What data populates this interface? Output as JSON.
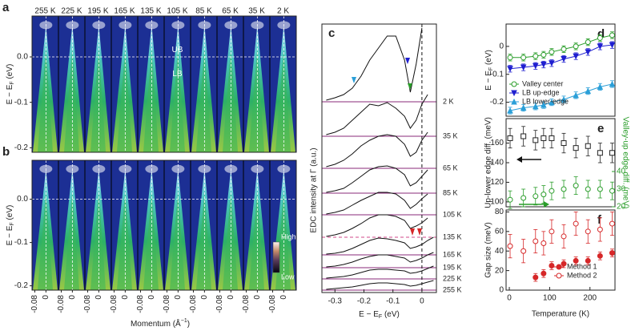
{
  "chart_data": [
    {
      "type": "image",
      "letter": "a",
      "categories": [
        "255 K",
        "225 K",
        "195 K",
        "165 K",
        "135 K",
        "105 K",
        "85 K",
        "65 K",
        "35 K",
        "2 K"
      ],
      "ylabel": [
        "E − E",
        "F",
        " (eV)"
      ],
      "ylim": [
        -0.21,
        0.09
      ],
      "yticks": [
        {
          "value": 0,
          "label": "0.0"
        },
        -0.1,
        -0.2
      ],
      "xlim": [
        -0.1,
        0.09
      ],
      "annotations": [
        "UB",
        "LB"
      ]
    },
    {
      "type": "image",
      "letter": "b",
      "ylabel": [
        "E − E",
        "F",
        " (eV)"
      ],
      "ylim": [
        -0.21,
        0.09
      ],
      "yticks": [
        {
          "value": 0,
          "label": "0.0"
        },
        -0.1,
        -0.2
      ],
      "xlim": [
        -0.1,
        0.09
      ],
      "xticks": [
        -0.08,
        0
      ],
      "xlabel": [
        "Momentum (Å",
        "−1",
        ")"
      ],
      "colorbar": [
        "High",
        "Low"
      ]
    },
    {
      "type": "line",
      "letter": "c",
      "xlabel": [
        "E − E",
        "F",
        " (eV)"
      ],
      "ylabel": "EDC intensity at Γ (a.u.)",
      "xlim": [
        -0.345,
        0.05
      ],
      "xticks": [
        -0.3,
        -0.2,
        -0.1,
        0
      ],
      "ylim": [
        0,
        335
      ],
      "x": [
        -0.33,
        -0.3,
        -0.27,
        -0.24,
        -0.21,
        -0.18,
        -0.15,
        -0.12,
        -0.09,
        -0.06,
        -0.04,
        -0.02,
        0,
        0.02,
        0.04
      ],
      "series": [
        {
          "name": "2 K",
          "baseline": 238,
          "values": [
            240,
            243,
            247,
            255,
            270,
            290,
            305,
            320,
            320,
            290,
            250,
            285,
            330,
            null,
            null
          ]
        },
        {
          "name": "35 K",
          "baseline": 195,
          "values": [
            197,
            200,
            205,
            215,
            225,
            235,
            233,
            237,
            230,
            220,
            205,
            215,
            235,
            247,
            null
          ]
        },
        {
          "name": "65 K",
          "baseline": 155,
          "values": [
            157,
            160,
            165,
            173,
            183,
            190,
            195,
            197,
            195,
            185,
            170,
            175,
            190,
            200,
            null
          ]
        },
        {
          "name": "85 K",
          "baseline": 124,
          "values": [
            125,
            127,
            130,
            137,
            145,
            153,
            157,
            158,
            155,
            147,
            133,
            137,
            145,
            153,
            null
          ]
        },
        {
          "name": "105 K",
          "baseline": 97,
          "values": [
            98,
            100,
            103,
            109,
            115,
            120,
            125,
            125,
            123,
            115,
            105,
            110,
            117,
            123,
            null
          ]
        },
        {
          "name": "135 K",
          "baseline": 69,
          "dashed": true,
          "values": [
            70,
            72,
            75,
            80,
            86,
            93,
            97,
            97,
            95,
            90,
            80,
            83,
            87,
            93,
            null
          ]
        },
        {
          "name": "165 K",
          "baseline": 47,
          "values": [
            48,
            49,
            51,
            55,
            60,
            65,
            68,
            67,
            65,
            62,
            55,
            57,
            60,
            65,
            69
          ]
        },
        {
          "name": "195 K",
          "baseline": 31,
          "values": [
            32,
            33,
            35,
            38,
            42,
            45,
            47,
            47,
            45,
            43,
            38,
            40,
            43,
            47,
            50
          ]
        },
        {
          "name": "225 K",
          "baseline": 17,
          "values": [
            18,
            19,
            20,
            22,
            25,
            28,
            29,
            29,
            28,
            27,
            24,
            25,
            27,
            30,
            33
          ]
        },
        {
          "name": "255 K",
          "baseline": 3,
          "values": [
            4,
            5,
            6,
            7,
            9,
            11,
            12,
            12,
            11,
            10,
            8,
            9,
            11,
            13,
            15
          ]
        }
      ]
    },
    {
      "type": "scatter",
      "letter": "d",
      "ylabel": [
        "E − E",
        "F",
        " (eV)"
      ],
      "xlim": [
        -8,
        262
      ],
      "ylim": [
        -0.25,
        0.08
      ],
      "yticks": [
        0,
        -0.1,
        -0.2
      ],
      "connect": true,
      "legend": "lower-left",
      "x": [
        2,
        35,
        65,
        85,
        105,
        135,
        165,
        195,
        225,
        255
      ],
      "series": [
        {
          "name": "Valley center",
          "color": "#2a9d2a",
          "marker": "circle-open",
          "values": [
            -0.04,
            -0.04,
            -0.035,
            -0.03,
            -0.02,
            -0.01,
            0.0,
            0.015,
            0.03,
            0.04
          ],
          "errors": [
            0.012,
            0.012,
            0.012,
            0.012,
            0.012,
            0.012,
            0.012,
            0.012,
            0.012,
            0.012
          ]
        },
        {
          "name": "LB up-edge",
          "color": "#1f1fd0",
          "marker": "triangle-down",
          "values": [
            -0.08,
            -0.075,
            -0.07,
            -0.065,
            -0.06,
            -0.045,
            -0.035,
            -0.02,
            0.0,
            0.005
          ],
          "errors": [
            0.012,
            0.012,
            0.012,
            0.012,
            0.012,
            0.012,
            0.012,
            0.012,
            0.012,
            0.012
          ]
        },
        {
          "name": "LB lower-edge",
          "color": "#2b9fd8",
          "marker": "triangle-up",
          "values": [
            -0.23,
            -0.22,
            -0.215,
            -0.21,
            -0.2,
            -0.19,
            -0.175,
            -0.16,
            -0.145,
            -0.135
          ],
          "errors": [
            0.012,
            0.012,
            0.012,
            0.012,
            0.012,
            0.012,
            0.012,
            0.012,
            0.012,
            0.012
          ]
        }
      ]
    },
    {
      "type": "scatter",
      "letter": "e",
      "ylabel": "Up-lower edge diff. (meV)",
      "y2label": "Valley-up edge diff. (meV)",
      "xlim": [
        -8,
        262
      ],
      "ylim": [
        95,
        185
      ],
      "yticks": [
        100,
        120,
        140,
        160
      ],
      "y2lim": [
        20,
        70
      ],
      "y2ticks": [
        20,
        30,
        40
      ],
      "y2color": "#2a9d2a",
      "x": [
        2,
        35,
        65,
        85,
        105,
        135,
        165,
        195,
        225,
        255
      ],
      "series": [
        {
          "color": "#222222",
          "marker": "square-open",
          "values": [
            165,
            167,
            163,
            165,
            165,
            160,
            155,
            157,
            150,
            150
          ],
          "errors": [
            10,
            10,
            10,
            10,
            10,
            10,
            10,
            10,
            10,
            10
          ]
        },
        {
          "color": "#2a9d2a",
          "marker": "circle-open",
          "axis": "y2",
          "values": [
            24,
            25,
            26,
            27,
            29,
            30,
            32,
            30,
            30,
            29
          ],
          "errors": [
            5,
            5,
            5,
            5,
            5,
            5,
            5,
            5,
            5,
            5
          ]
        }
      ]
    },
    {
      "type": "scatter",
      "letter": "f",
      "ylabel": "Gap size (meV)",
      "xlabel": "Temperature (K)",
      "xlim": [
        -8,
        262
      ],
      "xticks": [
        0,
        100,
        200
      ],
      "ylim": [
        0,
        82
      ],
      "yticks": [
        0,
        20,
        40,
        60,
        80
      ],
      "legend": "lower-right",
      "x": [
        2,
        35,
        65,
        85,
        105,
        135,
        165,
        195,
        225,
        255
      ],
      "series": [
        {
          "name": "Method 1",
          "color": "#d62728",
          "marker": "circle",
          "values": [
            null,
            null,
            13,
            17,
            25,
            27,
            30,
            30,
            35,
            38
          ],
          "errors": [
            null,
            null,
            4,
            4,
            4,
            4,
            4,
            4,
            4,
            4
          ]
        },
        {
          "name": "Method 2",
          "color": "#d62728",
          "marker": "circle-open",
          "values": [
            45,
            40,
            50,
            48,
            60,
            55,
            68,
            60,
            62,
            68
          ],
          "errors": [
            12,
            12,
            12,
            12,
            12,
            12,
            12,
            12,
            12,
            12
          ]
        }
      ]
    }
  ]
}
